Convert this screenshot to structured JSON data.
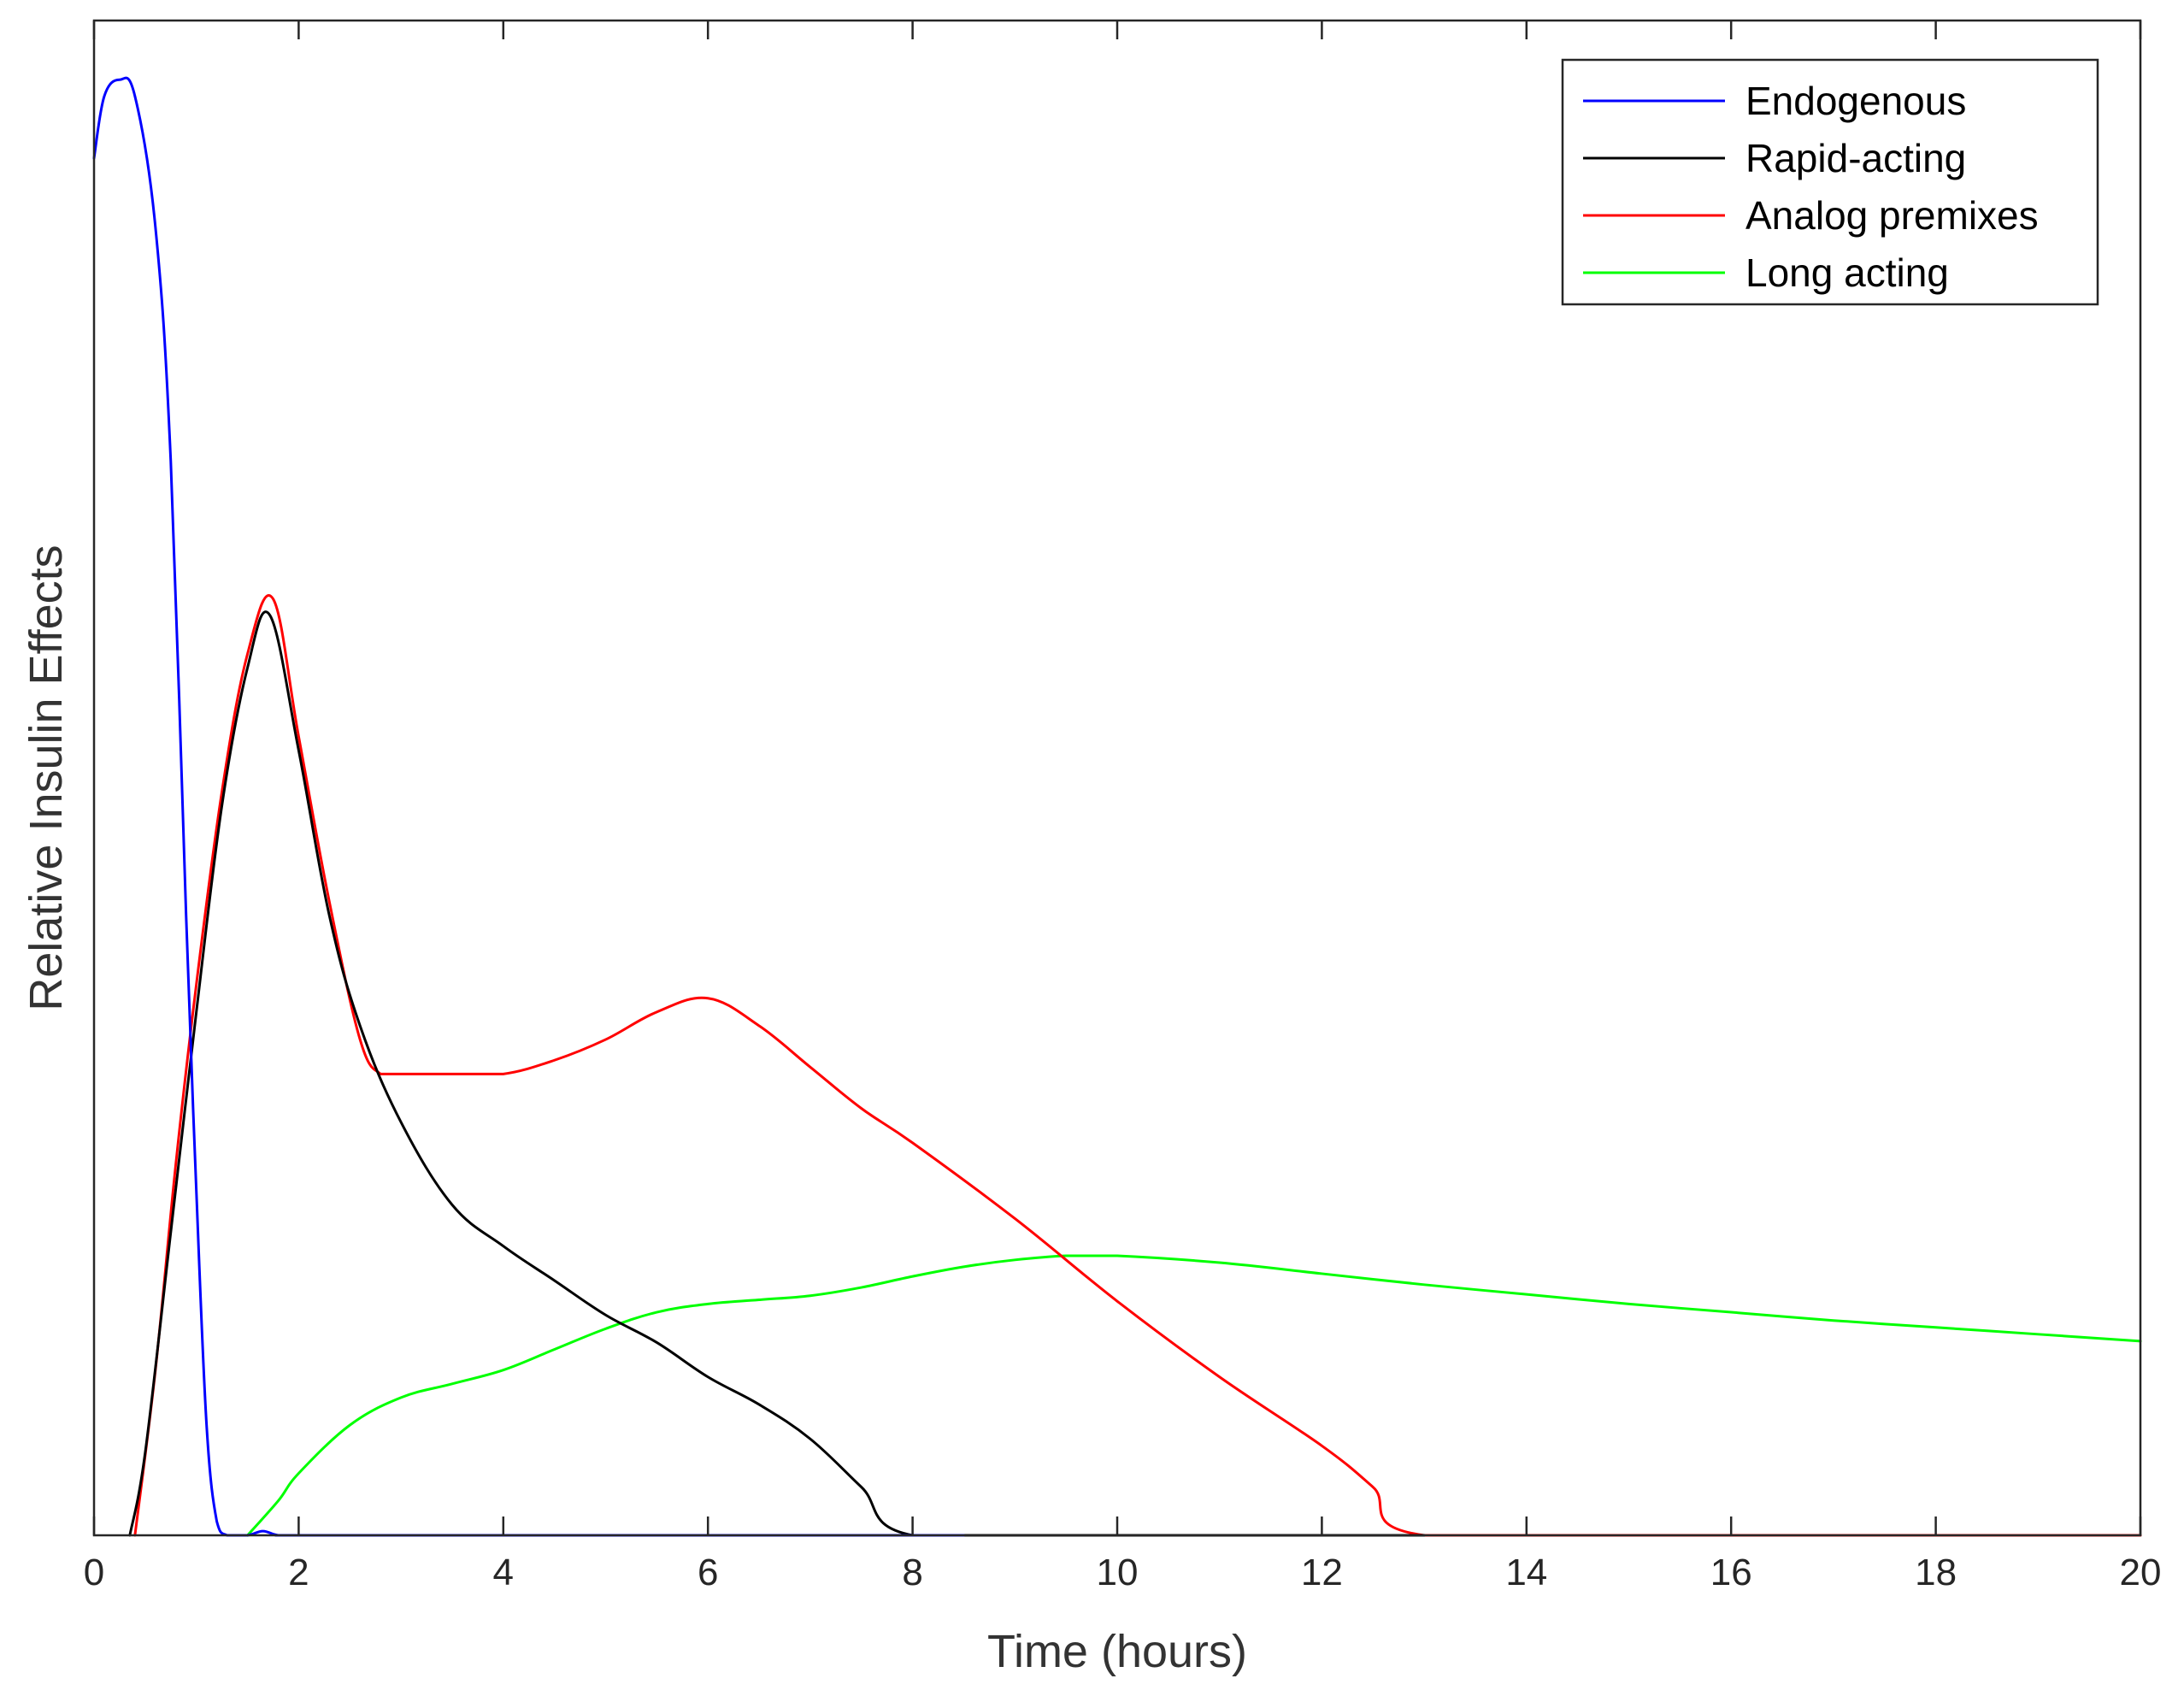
{
  "chart_data": {
    "type": "line",
    "title": "",
    "xlabel": "Time (hours)",
    "ylabel": "Relative Insulin Effects",
    "xlim": [
      0,
      20
    ],
    "ylim": [
      0,
      1.1
    ],
    "x_ticks": [
      "0",
      "2",
      "4",
      "6",
      "8",
      "10",
      "12",
      "14",
      "16",
      "18",
      "20"
    ],
    "y_ticks_shown": false,
    "grid": false,
    "legend_position": "top-right",
    "series": [
      {
        "name": "Endogenous",
        "color": "#0000ff",
        "x": [
          0,
          0.1,
          0.25,
          0.4,
          0.6,
          0.75,
          0.9,
          1.0,
          1.1,
          1.2,
          1.3,
          1.5,
          1.65,
          1.8,
          2.0,
          4.0,
          6.0,
          8.0,
          8.5
        ],
        "y": [
          1.0,
          1.045,
          1.057,
          1.045,
          0.95,
          0.78,
          0.45,
          0.25,
          0.08,
          0.01,
          0.0,
          0.0,
          0.003,
          0.0,
          0.0,
          0.0,
          0.0,
          0.0,
          0.0
        ]
      },
      {
        "name": "Rapid-acting",
        "color": "#000000",
        "x": [
          0.35,
          0.5,
          0.75,
          1.0,
          1.25,
          1.5,
          1.72,
          2.0,
          2.3,
          2.6,
          3.0,
          3.5,
          4.0,
          4.5,
          5.0,
          5.5,
          6.0,
          6.5,
          7.0,
          7.5,
          8.0,
          10.0,
          13.0
        ],
        "y": [
          0.0,
          0.06,
          0.22,
          0.38,
          0.53,
          0.63,
          0.668,
          0.57,
          0.45,
          0.37,
          0.3,
          0.24,
          0.21,
          0.185,
          0.16,
          0.14,
          0.115,
          0.095,
          0.07,
          0.035,
          0.0,
          0.0,
          0.0
        ]
      },
      {
        "name": "Analog premixes",
        "color": "#ff0000",
        "x": [
          0.4,
          0.6,
          0.8,
          1.0,
          1.25,
          1.5,
          1.75,
          2.0,
          2.3,
          2.6,
          2.8,
          3.0,
          3.5,
          4.0,
          4.5,
          5.0,
          5.5,
          6.0,
          6.5,
          7.0,
          7.5,
          8.0,
          9.0,
          10.0,
          11.0,
          12.0,
          12.5,
          13.0,
          16.0,
          20.0
        ],
        "y": [
          0.0,
          0.12,
          0.27,
          0.4,
          0.54,
          0.64,
          0.68,
          0.58,
          0.46,
          0.36,
          0.335,
          0.335,
          0.335,
          0.335,
          0.345,
          0.36,
          0.38,
          0.39,
          0.37,
          0.34,
          0.31,
          0.285,
          0.23,
          0.17,
          0.115,
          0.065,
          0.035,
          0.0,
          0.0,
          0.0
        ]
      },
      {
        "name": "Long acting",
        "color": "#00ff00",
        "x": [
          1.5,
          1.8,
          2.0,
          2.5,
          3.0,
          3.5,
          4.0,
          4.5,
          5.0,
          5.5,
          6.0,
          6.5,
          7.0,
          7.5,
          8.0,
          8.5,
          9.0,
          9.5,
          10.0,
          11.0,
          12.0,
          13.0,
          14.0,
          15.0,
          16.0,
          17.0,
          18.0,
          19.0,
          20.0
        ],
        "y": [
          0.0,
          0.025,
          0.045,
          0.08,
          0.1,
          0.11,
          0.12,
          0.135,
          0.15,
          0.162,
          0.168,
          0.171,
          0.174,
          0.18,
          0.188,
          0.195,
          0.2,
          0.203,
          0.203,
          0.198,
          0.19,
          0.182,
          0.175,
          0.168,
          0.162,
          0.156,
          0.151,
          0.146,
          0.141
        ]
      }
    ]
  }
}
